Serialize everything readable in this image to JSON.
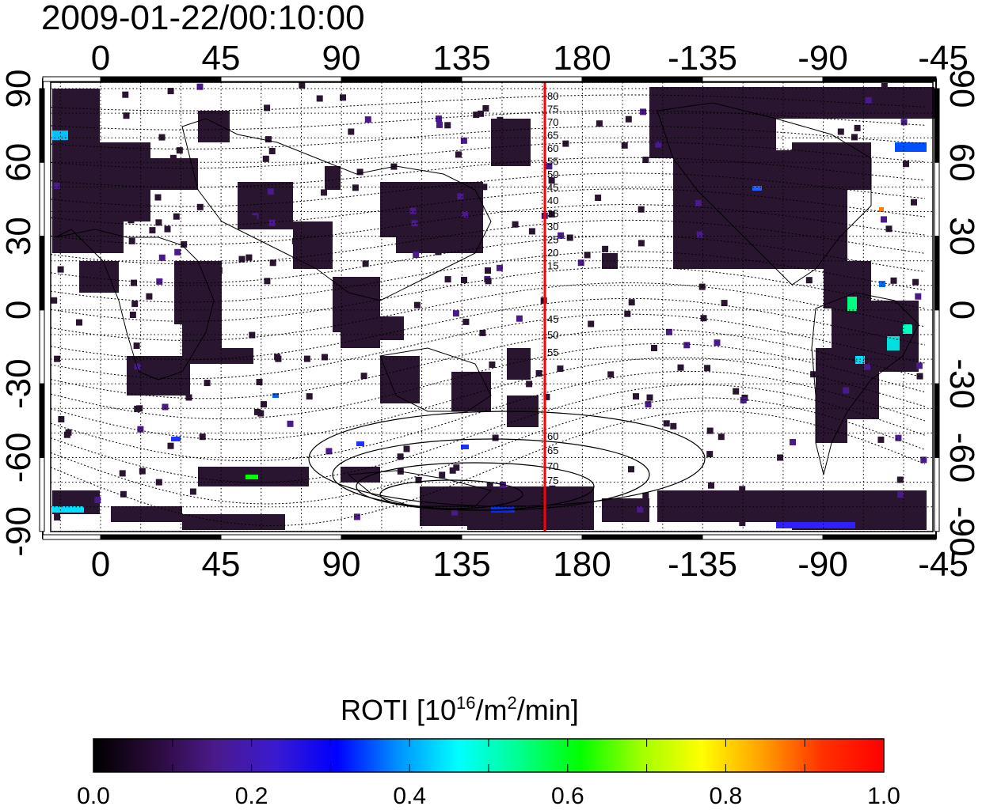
{
  "timestamp": "2009-01-22/00:10:00",
  "top_axis_ticks": [
    "0",
    "45",
    "90",
    "135",
    "180",
    "-135",
    "-90",
    "-45"
  ],
  "bottom_axis_ticks": [
    "0",
    "45",
    "90",
    "135",
    "180",
    "-135",
    "-90",
    "-45"
  ],
  "left_axis_ticks": [
    "90",
    "60",
    "30",
    "0",
    "-30",
    "-60",
    "-90"
  ],
  "right_axis_ticks": [
    "90",
    "60",
    "30",
    "0",
    "-30",
    "-60",
    "-90"
  ],
  "contour_labels_north": [
    "80",
    "75",
    "70",
    "65",
    "60",
    "55",
    "50",
    "45",
    "40",
    "35",
    "30",
    "25",
    "20",
    "15"
  ],
  "contour_labels_south": [
    "45",
    "50",
    "55",
    "60",
    "65",
    "70",
    "75"
  ],
  "colorbar": {
    "label_prefix": "ROTI  [10",
    "label_sup1": "16",
    "label_mid": "/m",
    "label_sup2": "2",
    "label_suffix": "/min]",
    "tick_labels": [
      "0.0",
      "0.2",
      "0.4",
      "0.6",
      "0.8",
      "1.0"
    ],
    "colors": [
      "#000000",
      "#2a0a3a",
      "#4a1a8a",
      "#3a1ad0",
      "#0000ff",
      "#0090ff",
      "#00ffff",
      "#00ff90",
      "#00ff00",
      "#a0ff00",
      "#ffff00",
      "#ffa000",
      "#ff3000",
      "#ff0000"
    ]
  },
  "marker_line_color": "#ff0000",
  "background_fill": "#ffffff",
  "data_fill": "#2a1530"
}
